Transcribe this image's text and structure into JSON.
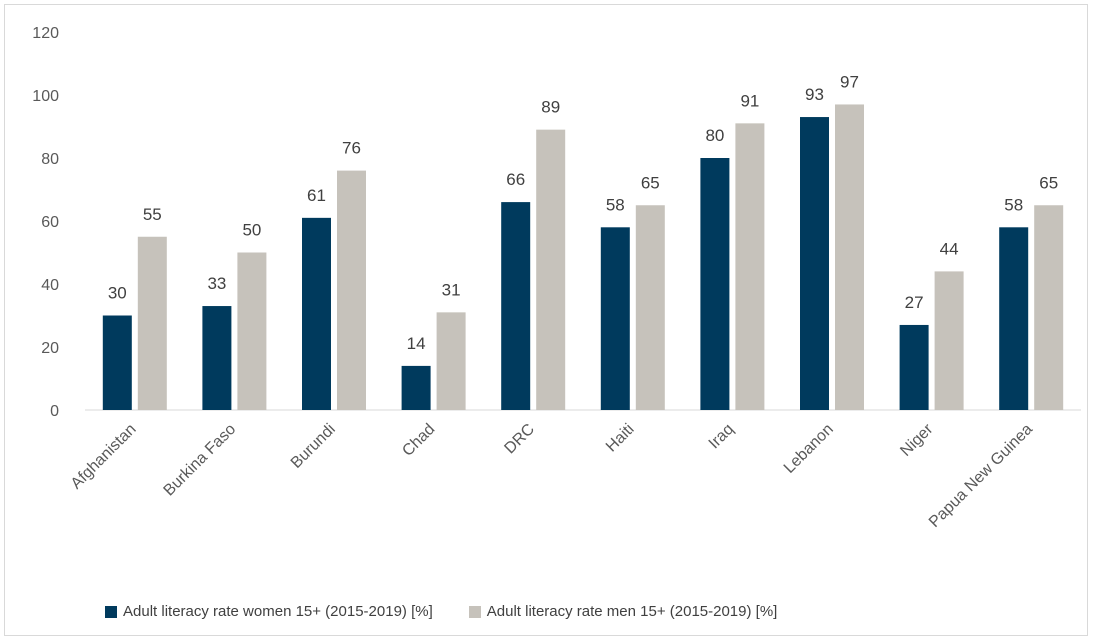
{
  "chart_data": {
    "type": "bar",
    "categories": [
      "Afghanistan",
      "Burkina Faso",
      "Burundi",
      "Chad",
      "DRC",
      "Haiti",
      "Iraq",
      "Lebanon",
      "Niger",
      "Papua New Guinea"
    ],
    "series": [
      {
        "name": "Adult literacy rate women 15+ (2015-2019) [%]",
        "color": "#003a5d",
        "values": [
          30,
          33,
          61,
          14,
          66,
          58,
          80,
          93,
          27,
          58
        ],
        "labels": [
          "30",
          "33",
          "61",
          "14",
          "66",
          "58",
          "80",
          "93",
          "27",
          "58"
        ]
      },
      {
        "name": "Adult literacy rate men 15+ (2015-2019) [%]",
        "color": "#c6c2bb",
        "values": [
          55,
          50,
          76,
          31,
          89,
          65,
          91,
          97,
          44,
          65
        ],
        "labels": [
          "55",
          "50",
          "76",
          "31",
          "89",
          "65",
          "91",
          "97",
          "44",
          "65"
        ]
      }
    ],
    "yticks": [
      "0",
      "20",
      "40",
      "60",
      "80",
      "100",
      "120"
    ],
    "ylim": [
      0,
      120
    ],
    "grid": false,
    "legend_position": "bottom",
    "title": "",
    "xlabel": "",
    "ylabel": ""
  }
}
